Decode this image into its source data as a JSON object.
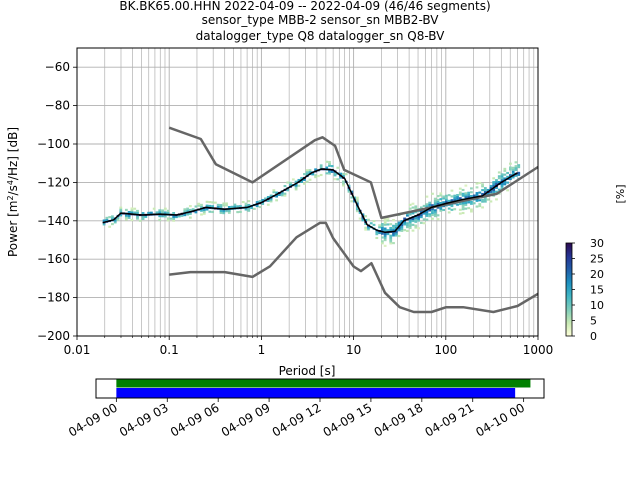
{
  "title": {
    "line1": "BK.BK65.00.HHN   2022-04-09 -- 2022-04-09  (46/46 segments)",
    "line2": "sensor_type MBB-2 sensor_sn MBB2-BV",
    "line3": "datalogger_type Q8 datalogger_sn Q8-BV"
  },
  "colorbar": {
    "label": "[%]",
    "ticks": [
      "0",
      "5",
      "10",
      "15",
      "20",
      "25",
      "30"
    ],
    "range": [
      0,
      30
    ],
    "colormap_stops": [
      "#ffffd9",
      "#c7e9b4",
      "#7fcdbb",
      "#41b6c4",
      "#1d91c0",
      "#225ea8",
      "#253494",
      "#2d0a4e"
    ]
  },
  "colors": {
    "noise_model": "#666666",
    "mode": "#000000",
    "coverage_green": "#008000",
    "coverage_blue": "#0000ff",
    "grid": "#b0b0b0"
  },
  "chart_data": {
    "type": "line",
    "xlabel": "Period [s]",
    "ylabel_prefix": "Power [m",
    "ylabel_exp1": "2",
    "ylabel_mid": "/s",
    "ylabel_exp2": "4",
    "ylabel_suffix": "/Hz] [dB]",
    "x_scale": "log",
    "xlim": [
      0.01,
      1000
    ],
    "ylim": [
      -200,
      -50
    ],
    "x_ticks": [
      {
        "value": 0.01,
        "label": "0.01"
      },
      {
        "value": 0.1,
        "label": "0.1"
      },
      {
        "value": 1,
        "label": "1"
      },
      {
        "value": 10,
        "label": "10"
      },
      {
        "value": 100,
        "label": "100"
      },
      {
        "value": 1000,
        "label": "1000"
      }
    ],
    "y_ticks": [
      {
        "value": -60,
        "label": "−60"
      },
      {
        "value": -80,
        "label": "−80"
      },
      {
        "value": -100,
        "label": "−100"
      },
      {
        "value": -120,
        "label": "−120"
      },
      {
        "value": -140,
        "label": "−140"
      },
      {
        "value": -160,
        "label": "−160"
      },
      {
        "value": -180,
        "label": "−180"
      },
      {
        "value": -200,
        "label": "−200"
      }
    ],
    "grid": true,
    "series": [
      {
        "role": "high_noise_model",
        "x": [
          0.1,
          0.22,
          0.32,
          0.8,
          3.8,
          4.6,
          6.3,
          7.9,
          15.4,
          20,
          354.8,
          1000
        ],
        "y": [
          -91.5,
          -97.4,
          -110.5,
          -120,
          -98,
          -96.5,
          -101,
          -113.5,
          -120,
          -138.5,
          -126,
          -112
        ]
      },
      {
        "role": "low_noise_model",
        "x": [
          0.1,
          0.17,
          0.4,
          0.8,
          1.24,
          2.4,
          4.3,
          5,
          6,
          10,
          12,
          15.6,
          21.9,
          31.6,
          45,
          70,
          101,
          154,
          328,
          600,
          1000
        ],
        "y": [
          -168,
          -166.7,
          -166.7,
          -169.2,
          -163.7,
          -148.6,
          -141.1,
          -141.1,
          -149,
          -163.8,
          -166.2,
          -162.1,
          -177.5,
          -185,
          -187.5,
          -187.5,
          -185,
          -185,
          -187.5,
          -184.4,
          -178
        ]
      },
      {
        "role": "mode",
        "x": [
          0.019,
          0.025,
          0.03,
          0.05,
          0.08,
          0.12,
          0.18,
          0.25,
          0.4,
          0.7,
          1,
          1.5,
          2.5,
          3.5,
          4.5,
          6,
          8,
          11,
          14,
          18,
          22,
          28,
          35,
          50,
          70,
          100,
          150,
          250,
          400,
          600
        ],
        "y": [
          -141,
          -139.5,
          -136,
          -137,
          -136.5,
          -137,
          -135,
          -133,
          -134,
          -133,
          -130.5,
          -126,
          -120,
          -115,
          -113,
          -113.5,
          -118,
          -132,
          -142,
          -145,
          -146,
          -145.5,
          -140,
          -137,
          -133,
          -131,
          -129,
          -127,
          -120,
          -115
        ]
      }
    ]
  },
  "coverage": {
    "x_ticks": [
      {
        "hour": 0,
        "label": "04-09 00"
      },
      {
        "hour": 3,
        "label": "04-09 03"
      },
      {
        "hour": 6,
        "label": "04-09 06"
      },
      {
        "hour": 9,
        "label": "04-09 09"
      },
      {
        "hour": 12,
        "label": "04-09 12"
      },
      {
        "hour": 15,
        "label": "04-09 15"
      },
      {
        "hour": 18,
        "label": "04-09 18"
      },
      {
        "hour": 21,
        "label": "04-09 21"
      },
      {
        "hour": 24,
        "label": "04-10 00"
      }
    ],
    "range_hours": [
      -1.2,
      25.2
    ],
    "green_bar_hours": [
      0,
      24.4
    ],
    "blue_bar_hours": [
      0,
      23.5
    ]
  }
}
